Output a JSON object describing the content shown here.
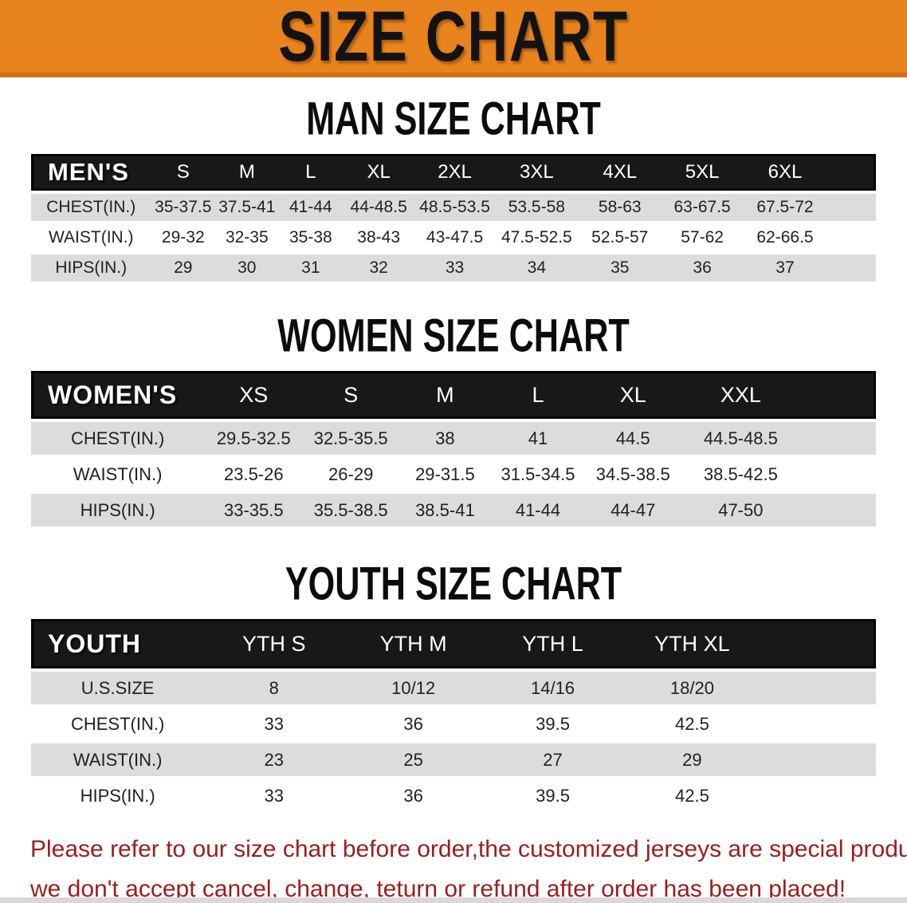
{
  "banner": {
    "title": "SIZE CHART"
  },
  "colors": {
    "banner_orange": "#E8831D",
    "banner_orange_edge": "#D06F12",
    "header_black": "#181818",
    "stripe_gray": "#DCDCDC",
    "disclaimer_red": "#9E1C1C"
  },
  "sections": [
    {
      "id": "men",
      "heading": "MAN SIZE CHART",
      "table": {
        "label": "MEN'S",
        "columns": [
          "S",
          "M",
          "L",
          "XL",
          "2XL",
          "3XL",
          "4XL",
          "5XL",
          "6XL"
        ],
        "rows": [
          {
            "label": "CHEST(IN.)",
            "values": [
              "35-37.5",
              "37.5-41",
              "41-44",
              "44-48.5",
              "48.5-53.5",
              "53.5-58",
              "58-63",
              "63-67.5",
              "67.5-72"
            ]
          },
          {
            "label": "WAIST(IN.)",
            "values": [
              "29-32",
              "32-35",
              "35-38",
              "38-43",
              "43-47.5",
              "47.5-52.5",
              "52.5-57",
              "57-62",
              "62-66.5"
            ]
          },
          {
            "label": "HIPS(IN.)",
            "values": [
              "29",
              "30",
              "31",
              "32",
              "33",
              "34",
              "35",
              "36",
              "37"
            ]
          }
        ]
      }
    },
    {
      "id": "women",
      "heading": "WOMEN SIZE CHART",
      "table": {
        "label": "WOMEN'S",
        "columns": [
          "XS",
          "S",
          "M",
          "L",
          "XL",
          "XXL"
        ],
        "rows": [
          {
            "label": "CHEST(IN.)",
            "values": [
              "29.5-32.5",
              "32.5-35.5",
              "38",
              "41",
              "44.5",
              "44.5-48.5"
            ]
          },
          {
            "label": "WAIST(IN.)",
            "values": [
              "23.5-26",
              "26-29",
              "29-31.5",
              "31.5-34.5",
              "34.5-38.5",
              "38.5-42.5"
            ]
          },
          {
            "label": "HIPS(IN.)",
            "values": [
              "33-35.5",
              "35.5-38.5",
              "38.5-41",
              "41-44",
              "44-47",
              "47-50"
            ]
          }
        ]
      }
    },
    {
      "id": "youth",
      "heading": "YOUTH SIZE CHART",
      "table": {
        "label": "YOUTH",
        "columns": [
          "YTH S",
          "YTH M",
          "YTH L",
          "YTH XL"
        ],
        "rows": [
          {
            "label": "U.S.SIZE",
            "values": [
              "8",
              "10/12",
              "14/16",
              "18/20"
            ]
          },
          {
            "label": "CHEST(IN.)",
            "values": [
              "33",
              "36",
              "39.5",
              "42.5"
            ]
          },
          {
            "label": "WAIST(IN.)",
            "values": [
              "23",
              "25",
              "27",
              "29"
            ]
          },
          {
            "label": "HIPS(IN.)",
            "values": [
              "33",
              "36",
              "39.5",
              "42.5"
            ]
          }
        ]
      }
    }
  ],
  "disclaimer": {
    "line1": "Please refer to our size chart before order,the customized jerseys are special products,",
    "line2": "we don't accept cancel, change, teturn or refund after order has been placed!"
  }
}
